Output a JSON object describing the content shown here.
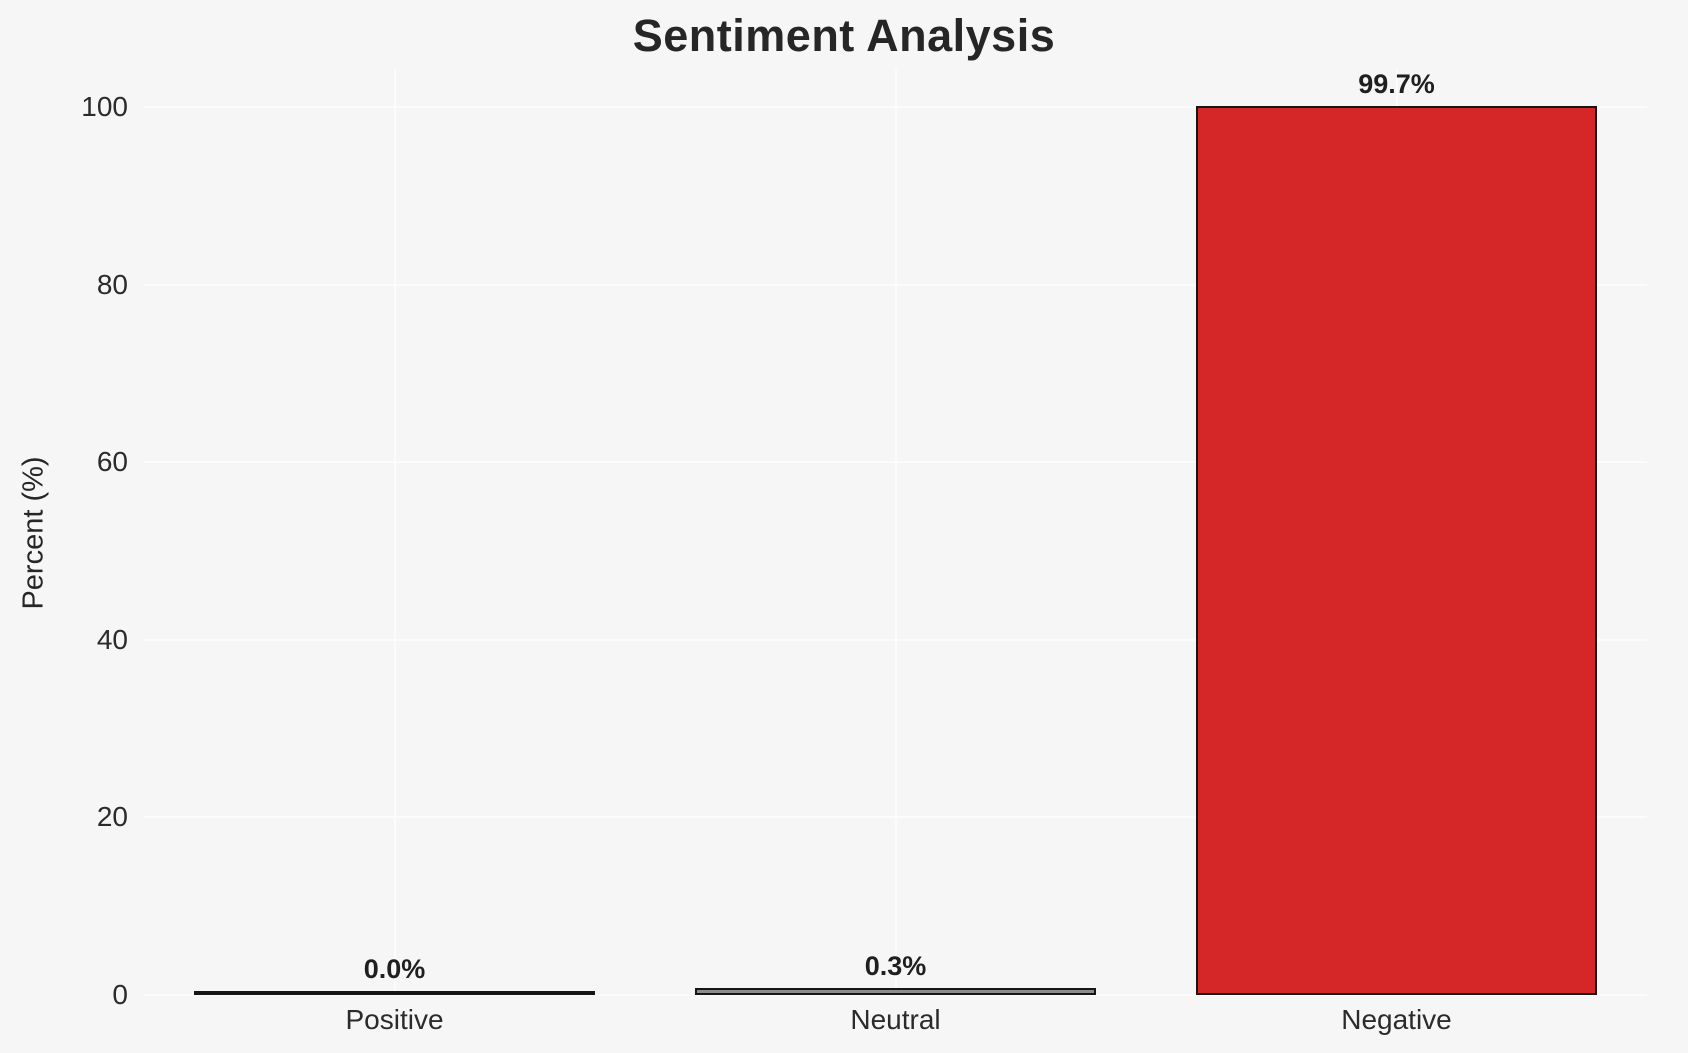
{
  "chart_data": {
    "type": "bar",
    "title": "Sentiment Analysis",
    "xlabel": "",
    "ylabel": "Percent (%)",
    "categories": [
      "Positive",
      "Neutral",
      "Negative"
    ],
    "values": [
      0.0,
      0.3,
      99.7
    ],
    "value_labels": [
      "0.0%",
      "0.3%",
      "99.7%"
    ],
    "bar_colors": [
      "#2ca02c",
      "#8c8c8c",
      "#d62728"
    ],
    "bar_edge_color": "#161616",
    "ylim": [
      0,
      104
    ],
    "yticks": [
      0,
      20,
      40,
      60,
      80,
      100
    ],
    "grid": "on",
    "gridline_color": "#fcfcfd",
    "background_color": "#f6f6f7",
    "legend": "none"
  }
}
